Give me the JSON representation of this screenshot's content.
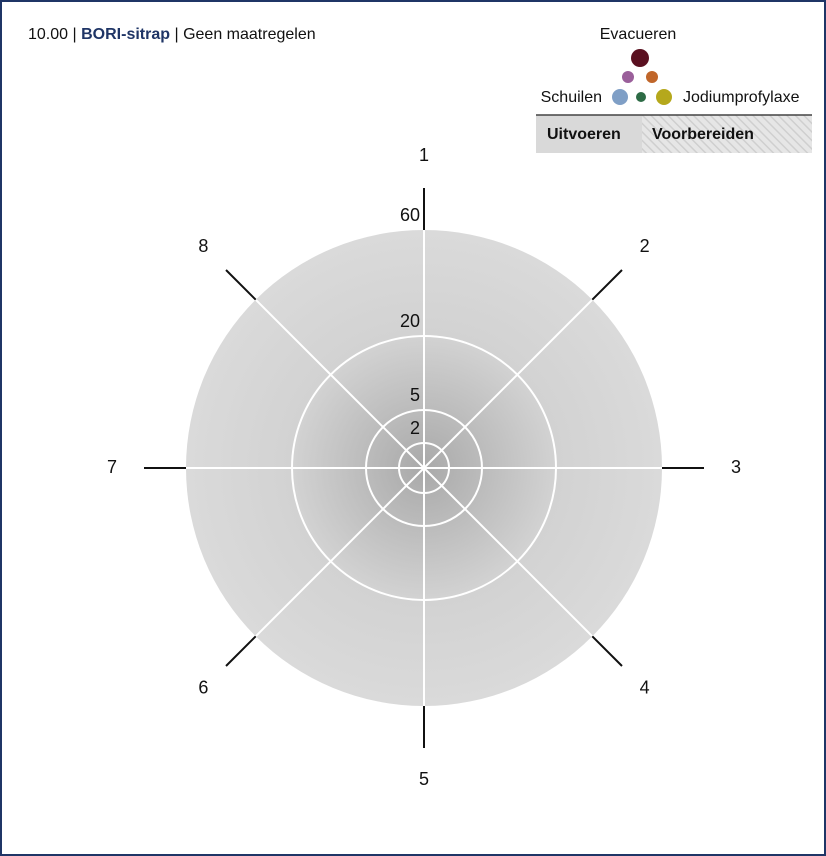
{
  "header": {
    "time": "10.00",
    "separator": "|",
    "title": "BORI-sitrap",
    "status": "Geen maatregelen"
  },
  "legend": {
    "top": "Evacueren",
    "left": "Schuilen",
    "right": "Jodiumprofylaxe",
    "solid": "Uitvoeren",
    "hatched": "Voorbereiden"
  },
  "diagram": {
    "rings": [
      "60",
      "20",
      "5",
      "2"
    ],
    "sectors": [
      "1",
      "2",
      "3",
      "4",
      "5",
      "6",
      "7",
      "8"
    ]
  }
}
